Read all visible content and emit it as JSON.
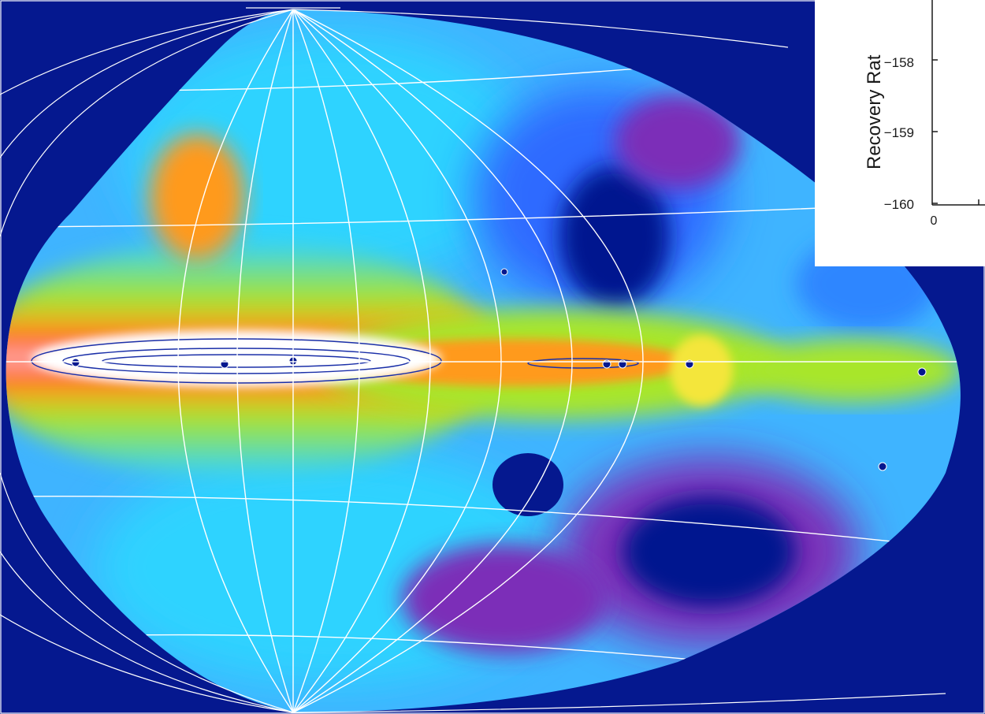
{
  "colors": {
    "background": "#05188f",
    "grid": "#ffffff",
    "contour": "#1a2fa8",
    "colormap": [
      "#05188f",
      "#7b2fb8",
      "#2d86ff",
      "#2fd3ff",
      "#28e6a8",
      "#a8e62a",
      "#f4e63a",
      "#ff9a1e",
      "#ff3b1e",
      "#ffffff"
    ]
  },
  "sky_map": {
    "projection": "aitoff-style all-sky",
    "grid": "on",
    "galactic_plane_contours": "on"
  },
  "inset_plot": {
    "ylabel": "Recovery Rat",
    "yticks": [
      "−158",
      "−159",
      "−160"
    ],
    "xticks": [
      "0"
    ]
  }
}
